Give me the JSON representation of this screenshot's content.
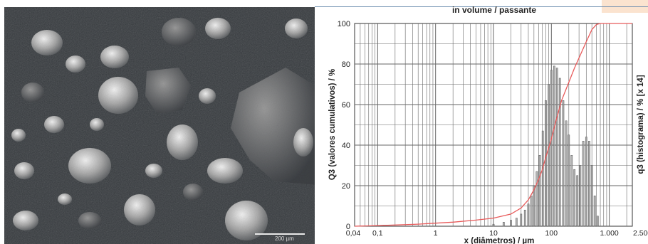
{
  "micrograph": {
    "scale_bar_label": "200 µm"
  },
  "chart_data": {
    "type": "bar",
    "title": "in volume / passante",
    "xlabel": "x (diâmetros) / µm",
    "ylabel": "Q3 (valores cumulativos) / %",
    "ylabel_right": "q3 (histograma) / % [x 14]",
    "x_scale": "log",
    "xlim": [
      0.04,
      2500
    ],
    "ylim": [
      0,
      100
    ],
    "x_tick_labels": [
      "0,04",
      "0,1",
      "1",
      "10",
      "100",
      "1.000",
      "2.500"
    ],
    "x_tick_values": [
      0.04,
      0.1,
      1,
      10,
      100,
      1000,
      2500
    ],
    "y_tick_labels": [
      "0",
      "20",
      "40",
      "60",
      "80",
      "100"
    ],
    "y_tick_values": [
      0,
      20,
      40,
      60,
      80,
      100
    ],
    "grid": true,
    "histogram": {
      "name": "q3 (histograma)",
      "x": [
        10,
        15,
        20,
        25,
        30,
        35,
        40,
        45,
        50,
        56,
        63,
        71,
        80,
        90,
        100,
        112,
        125,
        140,
        160,
        180,
        200,
        224,
        250,
        280,
        315,
        355,
        400,
        450,
        500,
        560,
        630
      ],
      "values": [
        1,
        2,
        3,
        4,
        6,
        8,
        11,
        15,
        20,
        27,
        35,
        47,
        62,
        70,
        77,
        79,
        78,
        73,
        62,
        52,
        45,
        35,
        28,
        25,
        30,
        42,
        44,
        42,
        30,
        15,
        5
      ]
    },
    "cumulative": {
      "name": "Q3 (valores cumulativos)",
      "x": [
        0.04,
        0.1,
        0.2,
        0.5,
        1,
        2,
        5,
        10,
        20,
        30,
        40,
        50,
        60,
        70,
        80,
        100,
        120,
        150,
        200,
        250,
        300,
        400,
        500,
        600,
        700,
        1000,
        2500
      ],
      "values": [
        0,
        0.3,
        0.6,
        1,
        1.5,
        2,
        3,
        4,
        6,
        9,
        13,
        18,
        23,
        28,
        34,
        43,
        52,
        62,
        71,
        78,
        83,
        91,
        97,
        99.5,
        100,
        100,
        100
      ]
    },
    "colors": {
      "histogram": "#9a9a9a",
      "cumulative": "#e85a5a",
      "grid": "#666666"
    }
  }
}
